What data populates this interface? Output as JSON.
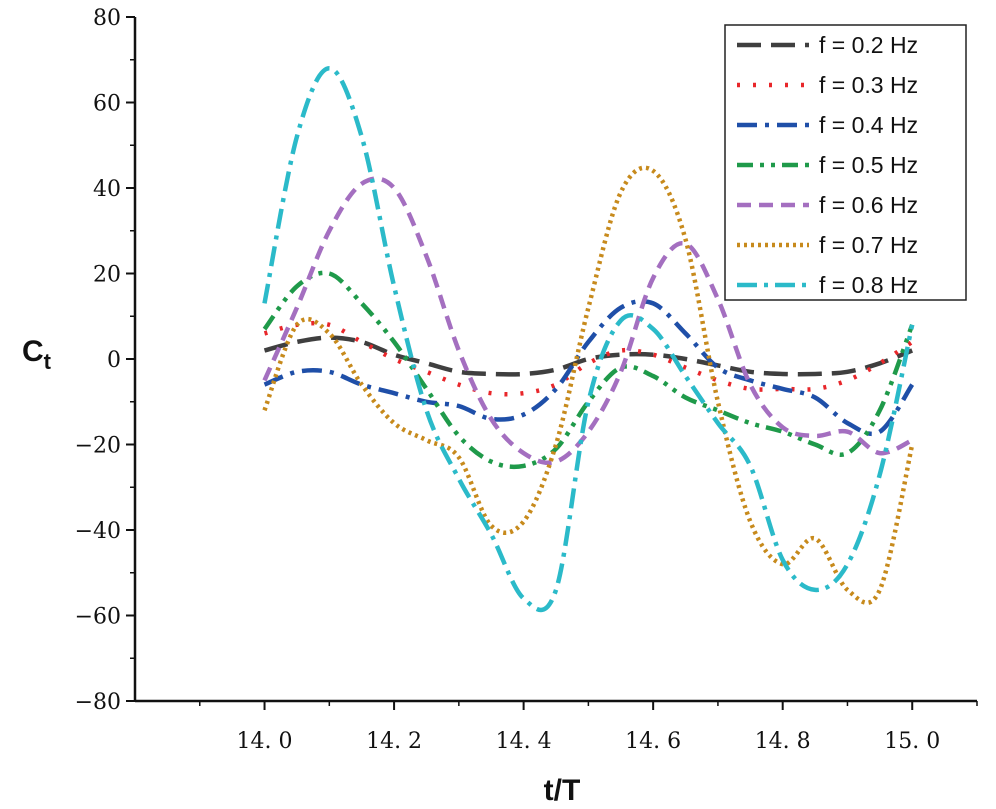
{
  "chart_data": {
    "type": "line",
    "title": "",
    "xlabel": "t/T",
    "ylabel_main": "C",
    "ylabel_sub": "t",
    "xlim": [
      13.8,
      15.1
    ],
    "ylim": [
      -80,
      80
    ],
    "xticks": [
      14.0,
      14.2,
      14.4,
      14.6,
      14.8,
      15.0
    ],
    "xtick_labels": [
      "14. 0",
      "14. 2",
      "14. 4",
      "14. 6",
      "14. 8",
      "15. 0"
    ],
    "yticks": [
      80,
      60,
      40,
      20,
      0,
      -20,
      -40,
      -60,
      -80
    ],
    "ytick_labels": [
      "80",
      "60",
      "40",
      "20",
      "0",
      "−20",
      "−40",
      "−60",
      "−80"
    ],
    "grid": false,
    "legend_position": "top-right",
    "series": [
      {
        "name": "f = 0.2 Hz",
        "color": "#3f3f3f",
        "dash": "24,10",
        "x": [
          14.0,
          14.05,
          14.1,
          14.15,
          14.2,
          14.25,
          14.3,
          14.35,
          14.4,
          14.45,
          14.5,
          14.55,
          14.6,
          14.65,
          14.7,
          14.75,
          14.8,
          14.85,
          14.9,
          14.95,
          15.0
        ],
        "values": [
          2,
          4,
          5,
          4,
          1,
          -1,
          -3,
          -3.5,
          -3.5,
          -2.5,
          0,
          1,
          1,
          0,
          -1.5,
          -3,
          -3.5,
          -3.5,
          -3,
          -1,
          2
        ]
      },
      {
        "name": "f = 0.3 Hz",
        "color": "#e8262a",
        "dash": "3,13",
        "x": [
          14.0,
          14.05,
          14.1,
          14.15,
          14.2,
          14.25,
          14.3,
          14.35,
          14.4,
          14.45,
          14.5,
          14.55,
          14.6,
          14.65,
          14.7,
          14.75,
          14.8,
          14.85,
          14.9,
          14.95,
          15.0
        ],
        "values": [
          6,
          8,
          8,
          4,
          0,
          -3,
          -6,
          -8,
          -8,
          -6,
          -1,
          2,
          1,
          -2,
          -5,
          -7,
          -7,
          -7,
          -5,
          -1,
          4
        ]
      },
      {
        "name": "f = 0.4 Hz",
        "color": "#1f4fa8",
        "dash": "20,8,4,8",
        "x": [
          14.0,
          14.05,
          14.1,
          14.15,
          14.2,
          14.25,
          14.3,
          14.35,
          14.4,
          14.45,
          14.5,
          14.55,
          14.6,
          14.65,
          14.7,
          14.75,
          14.8,
          14.85,
          14.9,
          14.95,
          15.0
        ],
        "values": [
          -6,
          -3,
          -3,
          -6,
          -8,
          -10,
          -11,
          -14,
          -13,
          -7,
          4,
          12,
          13,
          6,
          -2,
          -5,
          -7,
          -9,
          -15,
          -17,
          -6
        ]
      },
      {
        "name": "f = 0.5 Hz",
        "color": "#1f9a4a",
        "dash": "16,7,4,7,4,7",
        "x": [
          14.0,
          14.05,
          14.1,
          14.15,
          14.2,
          14.25,
          14.3,
          14.35,
          14.4,
          14.45,
          14.5,
          14.55,
          14.6,
          14.65,
          14.7,
          14.75,
          14.8,
          14.85,
          14.9,
          14.95,
          15.0
        ],
        "values": [
          7,
          17,
          20,
          13,
          4,
          -7,
          -18,
          -24,
          -25,
          -21,
          -10,
          -2,
          -4,
          -9,
          -12,
          -15,
          -17,
          -20,
          -22,
          -12,
          8
        ]
      },
      {
        "name": "f = 0.6 Hz",
        "color": "#a46fc0",
        "dash": "14,8",
        "x": [
          14.0,
          14.05,
          14.1,
          14.15,
          14.2,
          14.25,
          14.3,
          14.35,
          14.4,
          14.45,
          14.5,
          14.55,
          14.6,
          14.65,
          14.7,
          14.75,
          14.8,
          14.85,
          14.9,
          14.95,
          15.0
        ],
        "values": [
          -5,
          12,
          30,
          41,
          40,
          24,
          2,
          -14,
          -22,
          -24,
          -17,
          -3,
          19,
          27,
          14,
          -6,
          -16,
          -18,
          -17,
          -22,
          -19
        ]
      },
      {
        "name": "f = 0.7 Hz",
        "color": "#c78a1c",
        "dash": "3,4",
        "x": [
          14.0,
          14.05,
          14.1,
          14.15,
          14.2,
          14.25,
          14.3,
          14.35,
          14.4,
          14.45,
          14.5,
          14.55,
          14.6,
          14.65,
          14.7,
          14.75,
          14.8,
          14.85,
          14.9,
          14.95,
          15.0
        ],
        "values": [
          -12,
          8,
          6,
          -6,
          -15,
          -19,
          -23,
          -39,
          -38,
          -20,
          12,
          39,
          44,
          28,
          -10,
          -38,
          -48,
          -42,
          -54,
          -54,
          -20
        ]
      },
      {
        "name": "f = 0.8 Hz",
        "color": "#2bbac9",
        "dash": "20,7,4,7",
        "x": [
          14.0,
          14.05,
          14.1,
          14.15,
          14.2,
          14.25,
          14.3,
          14.35,
          14.4,
          14.45,
          14.5,
          14.55,
          14.6,
          14.65,
          14.7,
          14.75,
          14.8,
          14.85,
          14.9,
          14.95,
          15.0
        ],
        "values": [
          13,
          52,
          68,
          52,
          17,
          -12,
          -28,
          -41,
          -56,
          -54,
          -10,
          9,
          7,
          -4,
          -15,
          -25,
          -47,
          -54,
          -48,
          -27,
          8
        ]
      }
    ]
  }
}
